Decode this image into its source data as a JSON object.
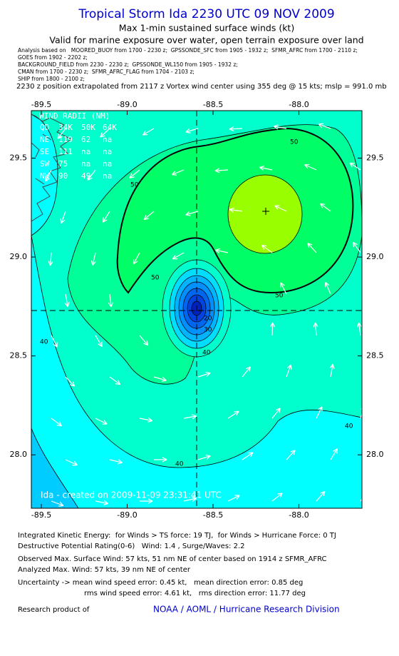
{
  "header": {
    "title": "Tropical Storm Ida 2230 UTC 09 NOV 2009",
    "subtitle": "Max 1-min sustained surface winds (kt)",
    "validity": "Valid for marine exposure over water, open terrain exposure over land",
    "sources": [
      "Analysis based on   MOORED_BUOY from 1700 - 2230 z;  GPSSONDE_SFC from 1905 - 1932 z;  SFMR_AFRC from 1700 - 2110 z;",
      "GOES from 1902 - 2202 z;",
      "BACKGROUND_FIELD from 2230 - 2230 z;  GPSSONDE_WL150 from 1905 - 1932 z;",
      "CMAN from 1700 - 2230 z;  SFMR_AFRC_FLAG from 1704 - 2103 z;",
      "SHIP from 1800 - 2100 z;"
    ],
    "position_note": "2230 z position extrapolated from 2117 z Vortex wind center using 355 deg @ 15 kts; mslp = 991.0 mb"
  },
  "map": {
    "xlim": [
      -89.558,
      -87.633
    ],
    "ylim": [
      27.73,
      29.74
    ],
    "xticks": [
      -89.5,
      {
        "value": -89,
        "label": "-89.0"
      },
      -88.5,
      {
        "value": -88,
        "label": "-88.0"
      }
    ],
    "yticks": [
      {
        "value": 28,
        "label": "28.0"
      },
      28.5,
      {
        "value": 29,
        "label": "29.0"
      },
      29.5
    ],
    "wind_radii": {
      "title": "WIND RADII (NM)",
      "rows": [
        [
          "QD",
          "34K",
          "50K",
          "64K"
        ],
        [
          "NE",
          "119",
          "62",
          "na"
        ],
        [
          "SE",
          "111",
          "na",
          "na"
        ],
        [
          "SW",
          "75",
          "na",
          "na"
        ],
        [
          "NW",
          "90",
          "49",
          "na"
        ]
      ]
    },
    "contour_labels": [
      "50",
      "50",
      "50",
      "50",
      "40",
      "40",
      "40",
      "40",
      "30",
      "20"
    ],
    "credit": "Ida - created on 2009-11-09 23:31:41 UTC"
  },
  "footer": {
    "lines": [
      "Integrated Kinetic Energy:  for Winds > TS force: 19 TJ,  for Winds > Hurricane Force: 0 TJ",
      "Destructive Potential Rating(0-6)   Wind: 1.4 , Surge/Waves: 2.2",
      "Observed Max. Surface Wind: 57 kts, 51 nm NE of center based on 1914 z SFMR_AFRC",
      "Analyzed Max. Wind: 57 kts, 39 nm NE of center",
      "Uncertainty -> mean wind speed error: 0.45 kt,   mean direction error: 0.85 deg",
      "rms wind speed error: 4.61 kt,   rms direction error: 11.77 deg"
    ],
    "product_label": "Research product of",
    "organization": "NOAA / AOML / Hurricane Research Division"
  }
}
